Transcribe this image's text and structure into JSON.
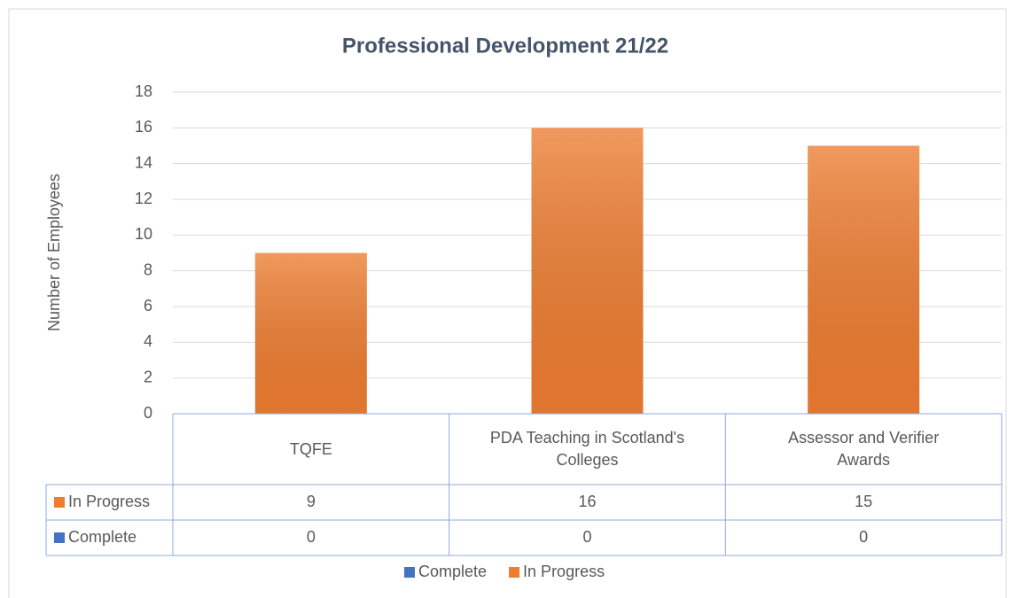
{
  "chart_data": {
    "type": "bar",
    "title": "Professional Development 21/22",
    "y_label": "Number of Employees",
    "categories": [
      "TQFE",
      "PDA Teaching in Scotland's Colleges",
      "Assessor and Verifier Awards"
    ],
    "series": [
      {
        "name": "Complete",
        "color": "#4472c4",
        "values": [
          0,
          0,
          0
        ]
      },
      {
        "name": "In Progress",
        "color": "#ed7d31",
        "values": [
          9,
          16,
          15
        ]
      }
    ],
    "stacked": true,
    "ylim": [
      0,
      18
    ],
    "yticks": [
      0,
      2,
      4,
      6,
      8,
      10,
      12,
      14,
      16,
      18
    ],
    "grid": true,
    "legend": "bottom",
    "data_table": true
  }
}
